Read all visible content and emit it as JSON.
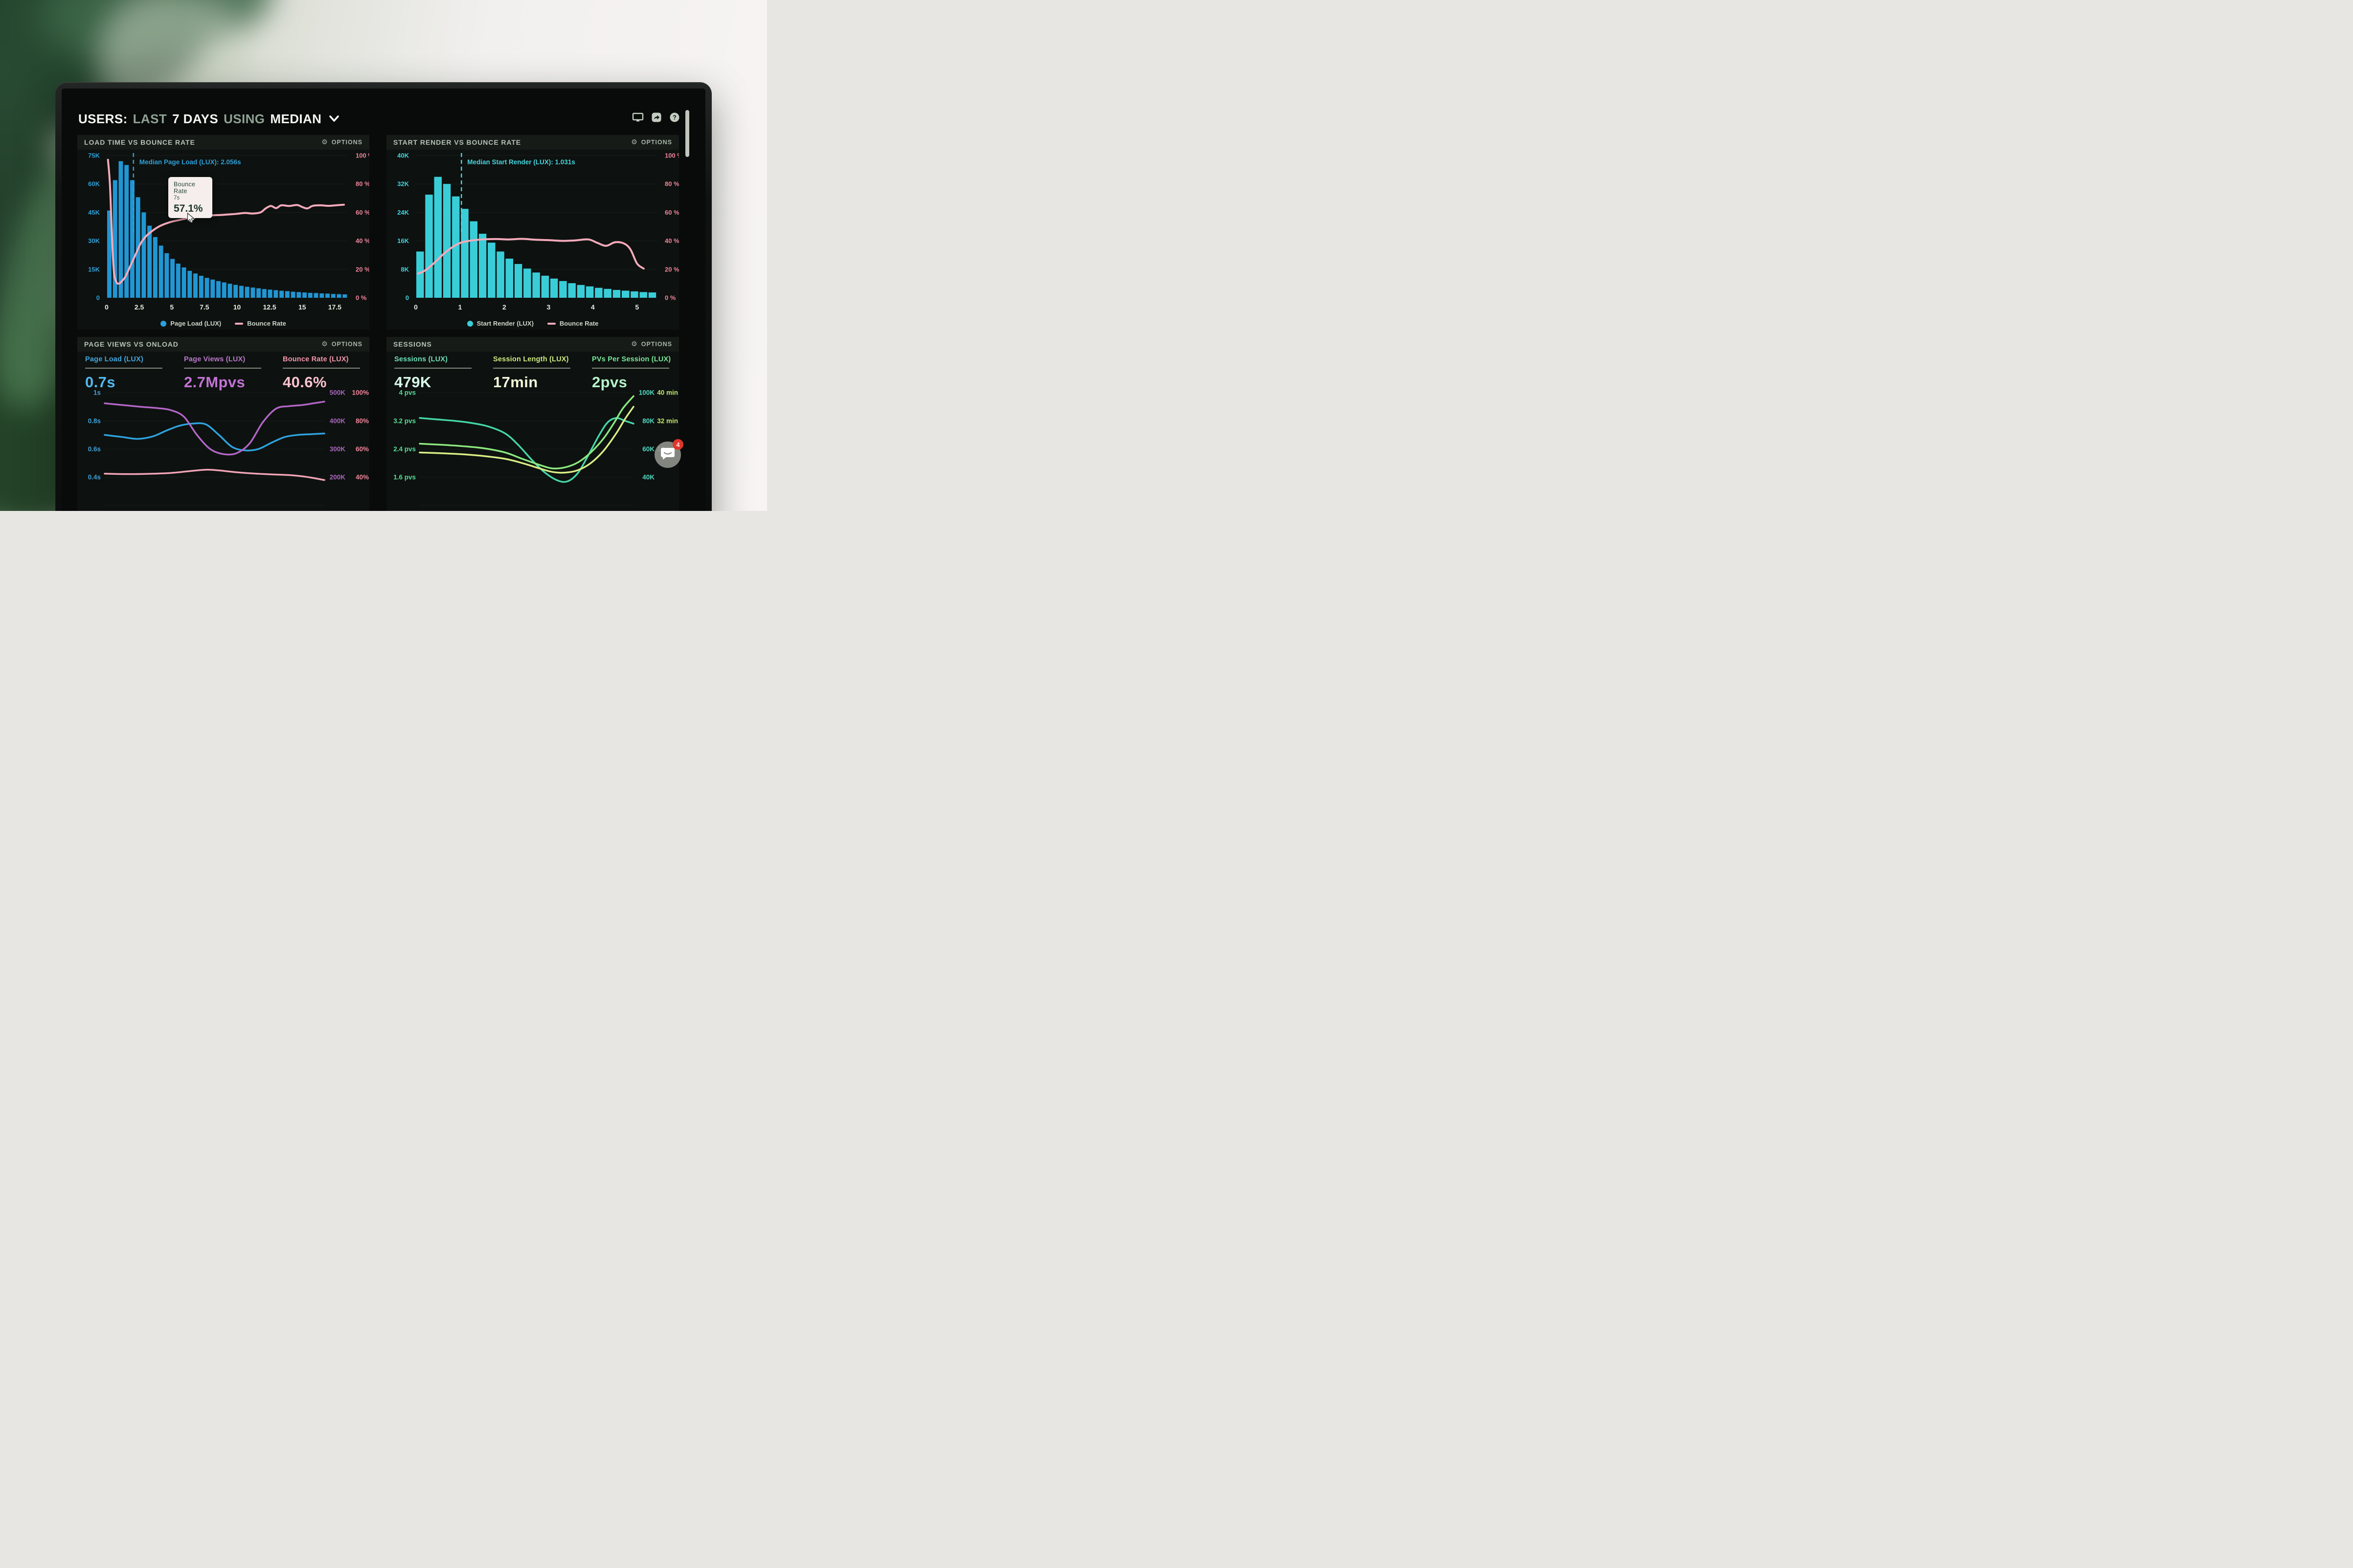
{
  "header": {
    "parts": [
      {
        "text": "USERS:",
        "style": "strong"
      },
      {
        "text": "LAST",
        "style": "dim"
      },
      {
        "text": "7 DAYS",
        "style": "strong"
      },
      {
        "text": "USING",
        "style": "dim"
      },
      {
        "text": "MEDIAN",
        "style": "strong"
      }
    ],
    "icons": [
      "monitor-icon",
      "share-icon",
      "help-icon"
    ]
  },
  "panels": [
    {
      "title": "LOAD TIME VS BOUNCE RATE",
      "options_label": "OPTIONS"
    },
    {
      "title": "START RENDER VS BOUNCE RATE",
      "options_label": "OPTIONS"
    },
    {
      "title": "PAGE VIEWS VS ONLOAD",
      "options_label": "OPTIONS",
      "metrics": [
        {
          "label": "Page Load (LUX)",
          "value": "0.7s",
          "label_color": "#45a4dc",
          "value_color": "#52b9ef"
        },
        {
          "label": "Page Views (LUX)",
          "value": "2.7Mpvs",
          "label_color": "#b778c8",
          "value_color": "#c272d4"
        },
        {
          "label": "Bounce Rate (LUX)",
          "value": "40.6%",
          "label_color": "#f295ab",
          "value_color": "#f9c2cf"
        }
      ]
    },
    {
      "title": "SESSIONS",
      "options_label": "OPTIONS",
      "metrics": [
        {
          "label": "Sessions (LUX)",
          "value": "479K",
          "label_color": "#6ee0ba",
          "value_color": "#d9f7eb"
        },
        {
          "label": "Session Length (LUX)",
          "value": "17min",
          "label_color": "#cde97e",
          "value_color": "#f1f7d8"
        },
        {
          "label": "PVs Per Session (LUX)",
          "value": "2pvs",
          "label_color": "#79e79a",
          "value_color": "#b5f4c9"
        }
      ]
    }
  ],
  "tooltip": {
    "series": "Bounce Rate",
    "x": "7s",
    "value": "57.1%"
  },
  "chat": {
    "badge": "4",
    "icon": "chat-bubble-icon"
  },
  "chart_data": [
    {
      "type": "bar+line",
      "title": "LOAD TIME VS BOUNCE RATE",
      "x_axis": {
        "ticks": [
          0,
          2.5,
          5,
          7.5,
          10,
          12.5,
          15,
          17.5
        ],
        "max": 18.5,
        "unit": "seconds"
      },
      "y_left": {
        "labels": [
          "75K",
          "60K",
          "45K",
          "30K",
          "15K",
          "0"
        ],
        "max": 75,
        "color": "#2f9fd8"
      },
      "y_right": {
        "labels": [
          "100 %",
          "80 %",
          "60 %",
          "40 %",
          "20 %",
          "0 %"
        ],
        "max": 100,
        "color": "#f2849c"
      },
      "bars": {
        "name": "Page Load (LUX)",
        "color": "#2196d3",
        "values_k": [
          46,
          62,
          72,
          70,
          62,
          53,
          45,
          38,
          32,
          27.5,
          23.5,
          20.5,
          18,
          16,
          14.2,
          12.8,
          11.6,
          10.5,
          9.6,
          8.8,
          8.1,
          7.4,
          6.8,
          6.3,
          5.8,
          5.4,
          5,
          4.6,
          4.3,
          4,
          3.7,
          3.5,
          3.2,
          3,
          2.8,
          2.6,
          2.5,
          2.3,
          2.2,
          2,
          1.9,
          1.8
        ]
      },
      "line": {
        "name": "Bounce Rate",
        "color": "#f3aabb",
        "points": [
          [
            0.1,
            97
          ],
          [
            0.25,
            80
          ],
          [
            0.4,
            45
          ],
          [
            0.55,
            19
          ],
          [
            0.75,
            11
          ],
          [
            0.95,
            10
          ],
          [
            1.15,
            11.5
          ],
          [
            1.45,
            15
          ],
          [
            1.8,
            22
          ],
          [
            2.2,
            30
          ],
          [
            2.6,
            38
          ],
          [
            3,
            43
          ],
          [
            3.5,
            47
          ],
          [
            4,
            50
          ],
          [
            4.5,
            52
          ],
          [
            5,
            53.5
          ],
          [
            5.5,
            54.5
          ],
          [
            6,
            55.5
          ],
          [
            6.5,
            56.4
          ],
          [
            7,
            57.1
          ],
          [
            7.6,
            57.6
          ],
          [
            8.2,
            58
          ],
          [
            8.8,
            58.2
          ],
          [
            9.4,
            58.6
          ],
          [
            10,
            59
          ],
          [
            10.6,
            59.6
          ],
          [
            11.2,
            59.2
          ],
          [
            11.8,
            60
          ],
          [
            12.2,
            62.8
          ],
          [
            12.6,
            64.5
          ],
          [
            13,
            63
          ],
          [
            13.4,
            65
          ],
          [
            14,
            64.5
          ],
          [
            14.6,
            65.2
          ],
          [
            15,
            63.8
          ],
          [
            15.4,
            62.8
          ],
          [
            15.8,
            64.6
          ],
          [
            16.4,
            65
          ],
          [
            17,
            64.6
          ],
          [
            17.6,
            65
          ],
          [
            18.2,
            65.4
          ]
        ]
      },
      "median": {
        "x": 2.056,
        "label": "Median Page Load (LUX): 2.056s",
        "color": "#2f9fd8"
      },
      "legend": [
        {
          "swatch": "dot",
          "color": "#2aa0df",
          "label": "Page Load (LUX)"
        },
        {
          "swatch": "dash",
          "color": "#f3aabb",
          "label": "Bounce Rate"
        }
      ],
      "tooltip": {
        "series": "Bounce Rate",
        "x_label": "7s",
        "value": "57.1%"
      }
    },
    {
      "type": "bar+line",
      "title": "START RENDER VS BOUNCE RATE",
      "x_axis": {
        "ticks": [
          0,
          1,
          2,
          3,
          4,
          5
        ],
        "max": 5.45,
        "unit": "seconds"
      },
      "y_left": {
        "labels": [
          "40K",
          "32K",
          "24K",
          "16K",
          "8K",
          "0"
        ],
        "max": 40,
        "color": "#41d2dd"
      },
      "y_right": {
        "labels": [
          "100 %",
          "80 %",
          "60 %",
          "40 %",
          "20 %",
          "0 %"
        ],
        "max": 100,
        "color": "#f2849c"
      },
      "bars": {
        "name": "Start Render (LUX)",
        "color": "#39cdd8",
        "values_k": [
          13,
          29,
          34,
          32,
          28.5,
          25,
          21.5,
          18,
          15.5,
          13,
          11,
          9.5,
          8.2,
          7.1,
          6.2,
          5.4,
          4.7,
          4.1,
          3.6,
          3.2,
          2.8,
          2.5,
          2.2,
          2,
          1.8,
          1.6,
          1.5
        ]
      },
      "line": {
        "name": "Bounce Rate",
        "color": "#f3aabb",
        "points": [
          [
            0.05,
            17
          ],
          [
            0.2,
            19
          ],
          [
            0.4,
            24
          ],
          [
            0.6,
            30
          ],
          [
            0.8,
            35
          ],
          [
            1,
            38.5
          ],
          [
            1.2,
            40
          ],
          [
            1.5,
            41
          ],
          [
            1.8,
            41.3
          ],
          [
            2.1,
            41
          ],
          [
            2.4,
            41.4
          ],
          [
            2.7,
            40.8
          ],
          [
            3,
            40.5
          ],
          [
            3.3,
            40
          ],
          [
            3.6,
            40.3
          ],
          [
            3.9,
            41
          ],
          [
            4.1,
            38.6
          ],
          [
            4.3,
            36.5
          ],
          [
            4.5,
            39
          ],
          [
            4.7,
            38.2
          ],
          [
            4.85,
            34
          ],
          [
            5,
            24
          ],
          [
            5.15,
            20.5
          ]
        ]
      },
      "median": {
        "x": 1.031,
        "label": "Median Start Render (LUX): 1.031s",
        "color": "#46d4de"
      },
      "legend": [
        {
          "swatch": "dot",
          "color": "#39cdd8",
          "label": "Start Render (LUX)"
        },
        {
          "swatch": "dash",
          "color": "#f3aabb",
          "label": "Bounce Rate"
        }
      ]
    },
    {
      "type": "multi-line",
      "title": "PAGE VIEWS VS ONLOAD",
      "plot_left": 56,
      "rows_left": {
        "labels": [
          "1s",
          "0.8s",
          "0.6s",
          "0.4s"
        ],
        "values": [
          1,
          0.8,
          0.6,
          0.4
        ],
        "color": "#3f9fd6"
      },
      "rows_right1": {
        "labels": [
          "500K",
          "400K",
          "300K",
          "200K"
        ],
        "values": [
          500,
          400,
          300,
          200
        ],
        "color": "#a965bd"
      },
      "rows_right2": {
        "labels": [
          "100%",
          "80%",
          "60%",
          "40%"
        ],
        "values": [
          100,
          80,
          60,
          40
        ],
        "color": "#f2849c"
      },
      "series": [
        {
          "name": "Page Load (LUX)",
          "axis": "left",
          "color": "#2fa3e0",
          "points": [
            [
              0,
              0.7
            ],
            [
              8,
              0.685
            ],
            [
              15,
              0.672
            ],
            [
              22,
              0.69
            ],
            [
              28,
              0.73
            ],
            [
              34,
              0.765
            ],
            [
              40,
              0.78
            ],
            [
              46,
              0.775
            ],
            [
              52,
              0.7
            ],
            [
              58,
              0.615
            ],
            [
              64,
              0.59
            ],
            [
              70,
              0.6
            ],
            [
              76,
              0.645
            ],
            [
              82,
              0.685
            ],
            [
              88,
              0.7
            ],
            [
              94,
              0.705
            ],
            [
              100,
              0.71
            ]
          ]
        },
        {
          "name": "Page Views (LUX)",
          "axis": "right1",
          "color": "#b266c6",
          "points": [
            [
              0,
              462
            ],
            [
              8,
              456
            ],
            [
              16,
              450
            ],
            [
              24,
              445
            ],
            [
              30,
              438
            ],
            [
              36,
              415
            ],
            [
              42,
              350
            ],
            [
              48,
              300
            ],
            [
              54,
              282
            ],
            [
              60,
              285
            ],
            [
              66,
              320
            ],
            [
              72,
              395
            ],
            [
              78,
              443
            ],
            [
              84,
              452
            ],
            [
              90,
              456
            ],
            [
              95,
              462
            ],
            [
              100,
              468
            ]
          ]
        },
        {
          "name": "Bounce Rate (LUX)",
          "axis": "right2",
          "color": "#f0a4b6",
          "points": [
            [
              0,
              42.5
            ],
            [
              10,
              42.2
            ],
            [
              20,
              42.4
            ],
            [
              30,
              43
            ],
            [
              38,
              44.2
            ],
            [
              46,
              45.3
            ],
            [
              52,
              44.8
            ],
            [
              60,
              43.5
            ],
            [
              68,
              42.6
            ],
            [
              76,
              42
            ],
            [
              84,
              41.5
            ],
            [
              92,
              40.2
            ],
            [
              100,
              38
            ]
          ]
        }
      ]
    },
    {
      "type": "multi-line",
      "title": "SESSIONS",
      "plot_left": 68,
      "rows_left": {
        "labels": [
          "4 pvs",
          "3.2 pvs",
          "2.4 pvs",
          "1.6 pvs"
        ],
        "values": [
          4,
          3.2,
          2.4,
          1.6
        ],
        "color": "#57dd9a"
      },
      "rows_right1": {
        "labels": [
          "100K",
          "80K",
          "60K",
          "40K"
        ],
        "values": [
          100,
          80,
          60,
          40
        ],
        "color": "#4fd8c0"
      },
      "rows_right2": {
        "labels": [
          "40 min",
          "32 min",
          "24 min",
          ""
        ],
        "values": [
          40,
          32,
          24,
          16
        ],
        "color": "#c3e670"
      },
      "series": [
        {
          "name": "Sessions (LUX)",
          "axis": "right1",
          "color": "#45d6a8",
          "points": [
            [
              0,
              82
            ],
            [
              8,
              81
            ],
            [
              16,
              80
            ],
            [
              24,
              78.5
            ],
            [
              32,
              76
            ],
            [
              40,
              71
            ],
            [
              46,
              63
            ],
            [
              52,
              53
            ],
            [
              58,
              44
            ],
            [
              64,
              38
            ],
            [
              69,
              37
            ],
            [
              74,
              43
            ],
            [
              79,
              56
            ],
            [
              84,
              70
            ],
            [
              88,
              79
            ],
            [
              92,
              82
            ],
            [
              96,
              80
            ],
            [
              100,
              78
            ]
          ]
        },
        {
          "name": "PVs Per Session (LUX)",
          "axis": "left",
          "color": "#8ce87f",
          "points": [
            [
              0,
              2.55
            ],
            [
              10,
              2.52
            ],
            [
              20,
              2.48
            ],
            [
              30,
              2.42
            ],
            [
              40,
              2.3
            ],
            [
              48,
              2.12
            ],
            [
              56,
              1.95
            ],
            [
              62,
              1.85
            ],
            [
              68,
              1.88
            ],
            [
              74,
              2.02
            ],
            [
              80,
              2.3
            ],
            [
              86,
              2.7
            ],
            [
              91,
              3.15
            ],
            [
              95,
              3.55
            ],
            [
              100,
              3.9
            ]
          ]
        },
        {
          "name": "Session Length (LUX)",
          "axis": "right2",
          "color": "#d9ec85",
          "points": [
            [
              0,
              23
            ],
            [
              10,
              22.8
            ],
            [
              20,
              22.5
            ],
            [
              30,
              22
            ],
            [
              40,
              21.2
            ],
            [
              48,
              20
            ],
            [
              56,
              18.5
            ],
            [
              62,
              17.5
            ],
            [
              68,
              17.3
            ],
            [
              74,
              18
            ],
            [
              80,
              20
            ],
            [
              86,
              23.5
            ],
            [
              92,
              28.5
            ],
            [
              96,
              32.5
            ],
            [
              100,
              36
            ]
          ]
        }
      ]
    }
  ]
}
